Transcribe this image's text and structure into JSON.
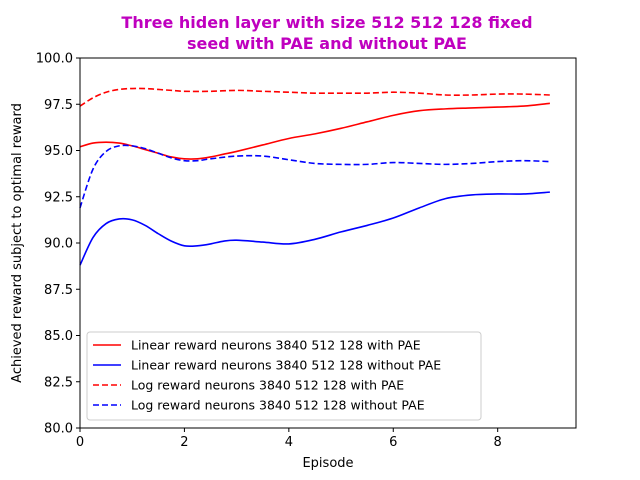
{
  "chart_data": {
    "type": "line",
    "title_line1": "Three hiden layer with size 512 512 128 fixed",
    "title_line2": "seed with PAE and without PAE",
    "title_color": "#bf00bf",
    "xlabel": "Episode",
    "ylabel": "Achieved reward subject to optimal reward",
    "xlim": [
      0,
      9.5
    ],
    "ylim": [
      80.0,
      100.0
    ],
    "xticks": [
      0,
      2,
      4,
      6,
      8
    ],
    "xtick_labels": [
      "0",
      "2",
      "4",
      "6",
      "8"
    ],
    "yticks": [
      80.0,
      82.5,
      85.0,
      87.5,
      90.0,
      92.5,
      95.0,
      97.5,
      100.0
    ],
    "ytick_labels": [
      "80.0",
      "82.5",
      "85.0",
      "87.5",
      "90.0",
      "92.5",
      "95.0",
      "97.5",
      "100.0"
    ],
    "grid": false,
    "legend_position": "lower-left",
    "series": [
      {
        "name": "Linear reward neurons 3840 512 128 with PAE",
        "color": "#ff0000",
        "dash": "solid",
        "x": [
          0,
          0.25,
          0.5,
          0.75,
          1,
          1.25,
          1.5,
          1.75,
          2,
          2.25,
          2.5,
          2.75,
          3,
          3.5,
          4,
          4.5,
          5,
          5.5,
          6,
          6.5,
          7,
          7.5,
          8,
          8.5,
          9
        ],
        "y": [
          95.2,
          95.4,
          95.45,
          95.4,
          95.25,
          95.05,
          94.85,
          94.65,
          94.55,
          94.55,
          94.65,
          94.8,
          94.95,
          95.3,
          95.65,
          95.9,
          96.2,
          96.55,
          96.9,
          97.15,
          97.25,
          97.3,
          97.35,
          97.4,
          97.55
        ]
      },
      {
        "name": "Linear reward neurons 3840 512 128 without PAE",
        "color": "#0000ff",
        "dash": "solid",
        "x": [
          0,
          0.25,
          0.5,
          0.75,
          1,
          1.25,
          1.5,
          1.75,
          2,
          2.25,
          2.5,
          2.75,
          3,
          3.5,
          4,
          4.5,
          5,
          5.5,
          6,
          6.5,
          7,
          7.5,
          8,
          8.5,
          9
        ],
        "y": [
          88.8,
          90.3,
          91.05,
          91.3,
          91.25,
          90.95,
          90.5,
          90.1,
          89.85,
          89.85,
          89.95,
          90.1,
          90.15,
          90.05,
          89.95,
          90.2,
          90.6,
          90.95,
          91.35,
          91.9,
          92.4,
          92.6,
          92.65,
          92.65,
          92.75
        ]
      },
      {
        "name": "Log reward neurons 3840 512 128 with PAE",
        "color": "#ff0000",
        "dash": "dashed",
        "x": [
          0,
          0.25,
          0.5,
          0.75,
          1,
          1.25,
          1.5,
          1.75,
          2,
          2.5,
          3,
          3.5,
          4,
          4.5,
          5,
          5.5,
          6,
          6.5,
          7,
          7.5,
          8,
          8.5,
          9
        ],
        "y": [
          97.4,
          97.85,
          98.15,
          98.3,
          98.35,
          98.35,
          98.3,
          98.25,
          98.2,
          98.2,
          98.25,
          98.2,
          98.15,
          98.1,
          98.1,
          98.1,
          98.15,
          98.1,
          98.0,
          98.0,
          98.05,
          98.05,
          98.0
        ]
      },
      {
        "name": "Log reward neurons 3840 512 128 without PAE",
        "color": "#0000ff",
        "dash": "dashed",
        "x": [
          0,
          0.25,
          0.5,
          0.75,
          1,
          1.25,
          1.5,
          1.75,
          2,
          2.25,
          2.5,
          3,
          3.5,
          4,
          4.5,
          5,
          5.5,
          6,
          6.5,
          7,
          7.5,
          8,
          8.5,
          9
        ],
        "y": [
          91.9,
          94.0,
          94.95,
          95.25,
          95.25,
          95.1,
          94.85,
          94.6,
          94.45,
          94.45,
          94.55,
          94.7,
          94.7,
          94.5,
          94.3,
          94.25,
          94.25,
          94.35,
          94.3,
          94.25,
          94.3,
          94.4,
          94.45,
          94.4
        ]
      }
    ]
  }
}
